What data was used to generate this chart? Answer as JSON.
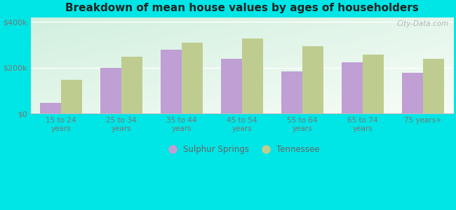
{
  "title": "Breakdown of mean house values by ages of householders",
  "categories": [
    "15 to 24\nyears",
    "25 to 34\nyears",
    "35 to 44\nyears",
    "45 to 54\nyears",
    "55 to 64\nyears",
    "65 to 74\nyears",
    "75 years+"
  ],
  "sulphur_springs": [
    45000,
    198000,
    278000,
    238000,
    183000,
    223000,
    178000
  ],
  "tennessee": [
    148000,
    248000,
    308000,
    328000,
    293000,
    258000,
    238000
  ],
  "sulphur_color": "#bf9fd4",
  "tennessee_color": "#bfcc8f",
  "background_color": "#00e5e5",
  "ylabel_ticks": [
    "$0",
    "$200k",
    "$400k"
  ],
  "ytick_values": [
    0,
    200000,
    400000
  ],
  "ylim": [
    0,
    420000
  ],
  "legend_sulphur": "Sulphur Springs",
  "legend_tennessee": "Tennessee",
  "watermark": "City-Data.com"
}
